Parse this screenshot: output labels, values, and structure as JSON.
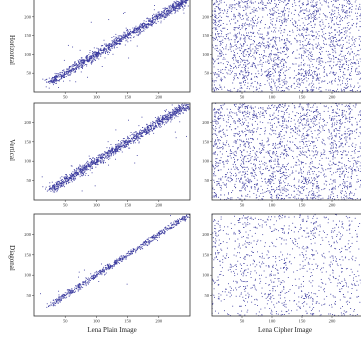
{
  "figure": {
    "row_labels": [
      "Horizontal",
      "Vertical",
      "Diagonal"
    ],
    "column_labels": [
      "Lena Plain Image",
      "Lena Cipher Image"
    ]
  },
  "chart_data": [
    {
      "type": "scatter",
      "row": "Horizontal",
      "column": "Lena Plain Image",
      "pattern": "diagonal-band",
      "xlim": [
        0,
        250
      ],
      "ylim": [
        0,
        250
      ],
      "xticks": [
        50,
        100,
        150,
        200
      ],
      "yticks": [
        50,
        100,
        150,
        200
      ],
      "band": {
        "from": 25,
        "to": 245,
        "spread": 8,
        "points": 1300,
        "outliers": 40
      },
      "color": "#3a3a9e",
      "xlabel": "",
      "ylabel": ""
    },
    {
      "type": "scatter",
      "row": "Horizontal",
      "column": "Lena Cipher Image",
      "pattern": "uniform-noise",
      "xlim": [
        0,
        250
      ],
      "ylim": [
        0,
        250
      ],
      "xticks": [
        50,
        100,
        150,
        200
      ],
      "yticks": [
        50,
        100,
        150,
        200
      ],
      "points": 2400,
      "color": "#3a3a9e",
      "xlabel": "",
      "ylabel": ""
    },
    {
      "type": "scatter",
      "row": "Vertical",
      "column": "Lena Plain Image",
      "pattern": "diagonal-band",
      "xlim": [
        0,
        250
      ],
      "ylim": [
        0,
        250
      ],
      "xticks": [
        50,
        100,
        150,
        200
      ],
      "yticks": [
        50,
        100,
        150,
        200
      ],
      "band": {
        "from": 25,
        "to": 245,
        "spread": 8,
        "points": 1300,
        "outliers": 40
      },
      "color": "#3a3a9e",
      "xlabel": "",
      "ylabel": ""
    },
    {
      "type": "scatter",
      "row": "Vertical",
      "column": "Lena Cipher Image",
      "pattern": "uniform-noise",
      "xlim": [
        0,
        250
      ],
      "ylim": [
        0,
        250
      ],
      "xticks": [
        50,
        100,
        150,
        200
      ],
      "yticks": [
        50,
        100,
        150,
        200
      ],
      "points": 2400,
      "color": "#3a3a9e",
      "xlabel": "",
      "ylabel": ""
    },
    {
      "type": "scatter",
      "row": "Diagonal",
      "column": "Lena Plain Image",
      "pattern": "diagonal-clusters",
      "xlim": [
        0,
        250
      ],
      "ylim": [
        0,
        250
      ],
      "xticks": [
        50,
        100,
        150,
        200
      ],
      "yticks": [
        50,
        100,
        150,
        200
      ],
      "band": {
        "from": 25,
        "to": 245,
        "spread": 5,
        "points": 700,
        "outliers": 15
      },
      "color": "#3a3a9e",
      "xlabel": "",
      "ylabel": ""
    },
    {
      "type": "scatter",
      "row": "Diagonal",
      "column": "Lena Cipher Image",
      "pattern": "uniform-noise",
      "xlim": [
        0,
        250
      ],
      "ylim": [
        0,
        250
      ],
      "xticks": [
        50,
        100,
        150,
        200
      ],
      "yticks": [
        50,
        100,
        150,
        200
      ],
      "points": 1200,
      "color": "#3a3a9e",
      "xlabel": "",
      "ylabel": ""
    }
  ]
}
